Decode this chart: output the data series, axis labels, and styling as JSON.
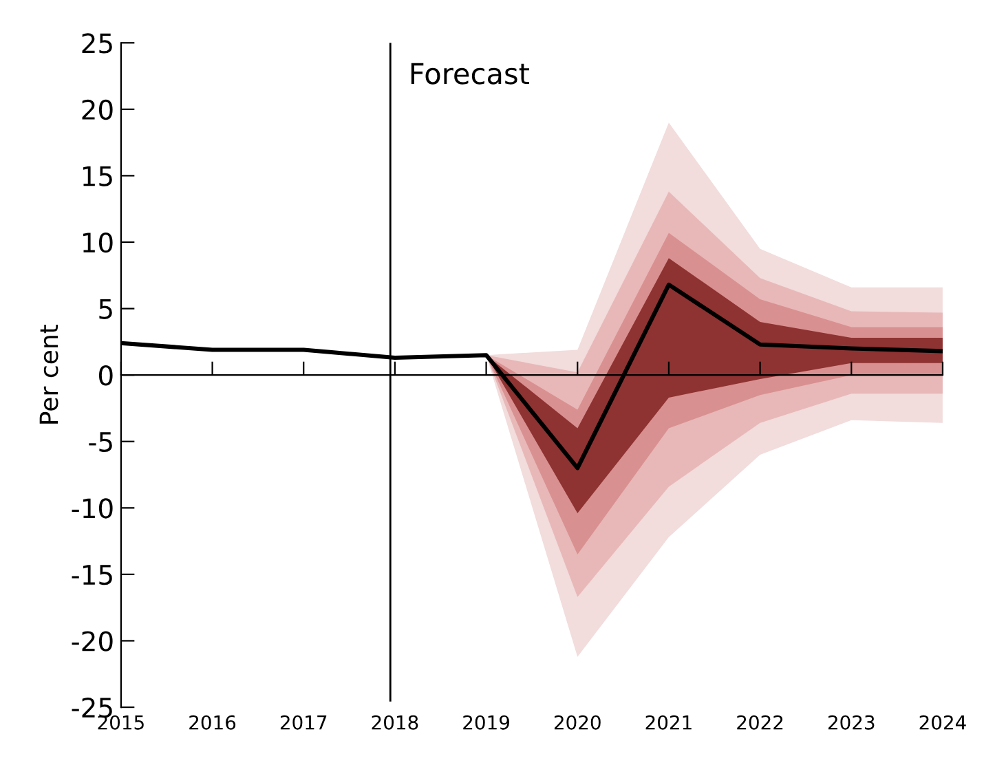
{
  "chart_data": {
    "type": "line",
    "ylabel": "Per cent",
    "xlim": [
      2015,
      2024
    ],
    "xticks": [
      2015,
      2016,
      2017,
      2018,
      2019,
      2020,
      2021,
      2022,
      2023,
      2024
    ],
    "ylim": [
      -25,
      25
    ],
    "yticks": [
      -25,
      -20,
      -15,
      -10,
      -5,
      0,
      5,
      10,
      15,
      20,
      25
    ],
    "marker": "none",
    "line_style": "solid",
    "series": [
      {
        "color": "#f2dcdc",
        "x": [
          2019,
          2020,
          2021,
          2022,
          2023,
          2024
        ],
        "values": [
          null,
          null,
          null,
          null,
          null,
          null
        ],
        "lower": [
          1.5,
          -21.2,
          -12.2,
          -6.0,
          -3.4,
          -3.6
        ],
        "upper": [
          1.5,
          1.9,
          19.0,
          9.5,
          6.6,
          6.6
        ]
      },
      {
        "color": "#e8b8b8",
        "x": [
          2019,
          2020,
          2021,
          2022,
          2023,
          2024
        ],
        "values": [
          null,
          null,
          null,
          null,
          null,
          null
        ],
        "lower": [
          1.5,
          -16.7,
          -8.4,
          -3.6,
          -1.4,
          -1.4
        ],
        "upper": [
          1.5,
          0.2,
          13.8,
          7.3,
          4.8,
          4.7
        ]
      },
      {
        "color": "#d99090",
        "x": [
          2019,
          2020,
          2021,
          2022,
          2023,
          2024
        ],
        "values": [
          null,
          null,
          null,
          null,
          null,
          null
        ],
        "lower": [
          1.5,
          -13.5,
          -4.0,
          -1.5,
          0.0,
          0.0
        ],
        "upper": [
          1.5,
          -2.6,
          10.7,
          5.7,
          3.6,
          3.6
        ]
      },
      {
        "color": "#8e3232",
        "x": [
          2019,
          2020,
          2021,
          2022,
          2023,
          2024
        ],
        "values": [
          null,
          null,
          null,
          null,
          null,
          null
        ],
        "lower": [
          1.5,
          -10.4,
          -1.7,
          -0.3,
          0.9,
          0.9
        ],
        "upper": [
          1.5,
          -4.0,
          8.8,
          4.0,
          2.8,
          2.8
        ]
      },
      {
        "color": "#000000",
        "x": [
          2015,
          2016,
          2017,
          2018,
          2019,
          2020,
          2021,
          2022,
          2023,
          2024
        ],
        "values": [
          2.4,
          1.9,
          1.9,
          1.3,
          1.5,
          -7.0,
          6.8,
          2.3,
          2.0,
          1.8
        ]
      }
    ],
    "ref_lines": [
      {
        "axis": "x",
        "value": 2017.95,
        "label": "Forecast",
        "color": "#000000"
      }
    ]
  }
}
